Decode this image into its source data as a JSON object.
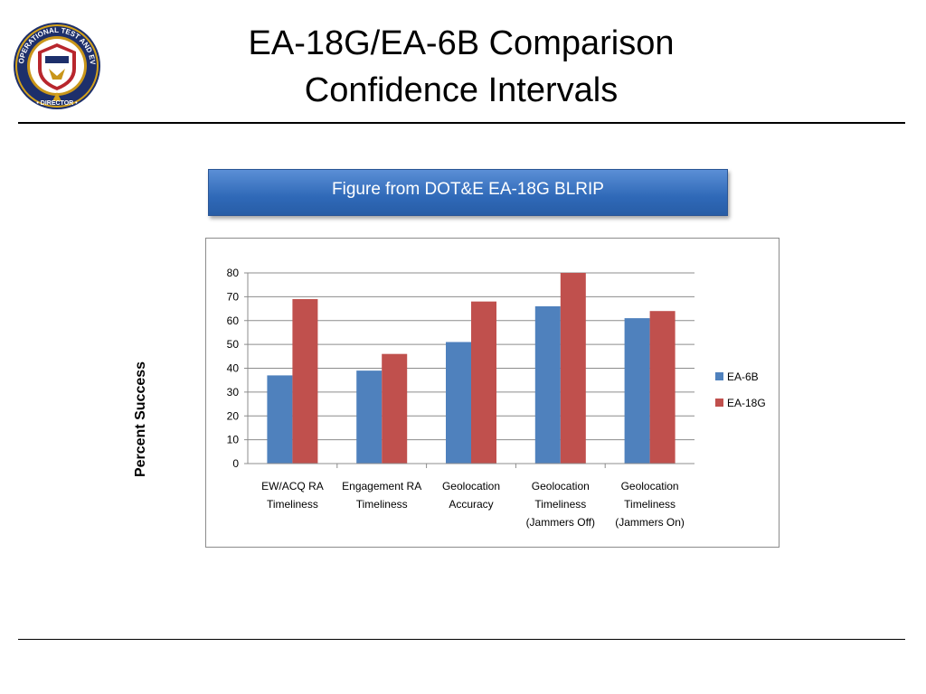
{
  "slide": {
    "title_line1": "EA-18G/EA-6B Comparison",
    "title_line2": "Confidence Intervals",
    "banner": "Figure from DOT&E EA-18G BLRIP",
    "seal_text": "OPERATIONAL TEST AND EVALUATION • DIRECTOR •"
  },
  "chart_data": {
    "type": "bar",
    "title": "",
    "xlabel": "",
    "ylabel": "Percent Success",
    "ylim": [
      0,
      80
    ],
    "yticks": [
      0,
      10,
      20,
      30,
      40,
      50,
      60,
      70,
      80
    ],
    "grid": true,
    "legend_position": "right",
    "categories": [
      [
        "EW/ACQ RA",
        "Timeliness"
      ],
      [
        "Engagement RA",
        "Timeliness"
      ],
      [
        "Geolocation",
        "Accuracy"
      ],
      [
        "Geolocation",
        "Timeliness",
        "(Jammers Off)"
      ],
      [
        "Geolocation",
        "Timeliness",
        "(Jammers On)"
      ]
    ],
    "series": [
      {
        "name": "EA-6B",
        "color": "#4f81bd",
        "values": [
          37,
          39,
          51,
          66,
          61
        ]
      },
      {
        "name": "EA-18G",
        "color": "#c0504d",
        "values": [
          69,
          46,
          68,
          80,
          64
        ]
      }
    ]
  }
}
